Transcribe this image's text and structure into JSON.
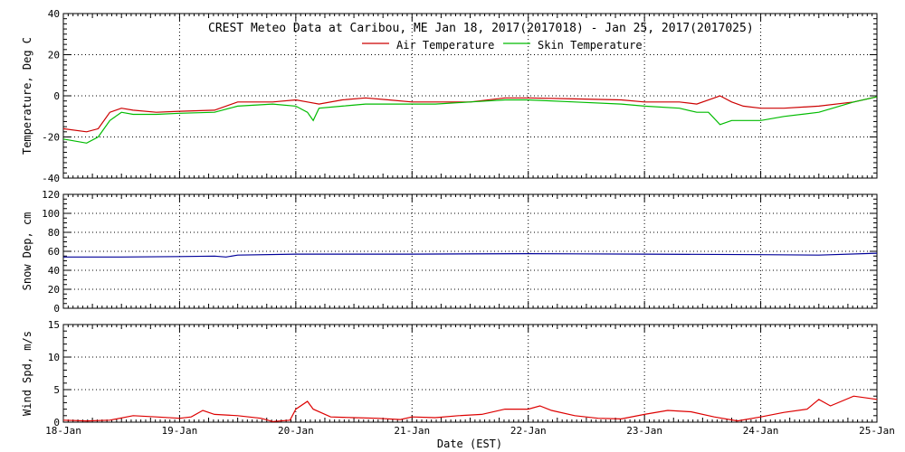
{
  "title": "CREST Meteo Data at Caribou, ME   Jan 18, 2017(2017018) - Jan 25, 2017(2017025)",
  "xlabel": "Date (EST)",
  "x_ticks": [
    "18-Jan",
    "19-Jan",
    "20-Jan",
    "21-Jan",
    "22-Jan",
    "23-Jan",
    "24-Jan",
    "25-Jan"
  ],
  "colors": {
    "air": "#cc0000",
    "skin": "#00bb00",
    "snow": "#000099",
    "wind": "#dd0000",
    "grid": "#000000"
  },
  "chart_data": [
    {
      "type": "line",
      "ylabel": "Temperature, Deg C",
      "xlim": [
        0,
        7
      ],
      "ylim": [
        -40,
        40
      ],
      "y_ticks": [
        "40",
        "20",
        "0",
        "-20",
        "-40"
      ],
      "grid": true,
      "legend": "top-center",
      "series": [
        {
          "name": "Air Temperature",
          "x": [
            0,
            0.2,
            0.3,
            0.4,
            0.5,
            0.6,
            0.8,
            1.0,
            1.3,
            1.5,
            1.8,
            2.0,
            2.1,
            2.2,
            2.4,
            2.6,
            2.8,
            3.0,
            3.2,
            3.5,
            3.8,
            4.0,
            4.4,
            4.8,
            5.0,
            5.3,
            5.45,
            5.6,
            5.65,
            5.75,
            5.85,
            6.0,
            6.2,
            6.5,
            6.8,
            7.0
          ],
          "y": [
            -16,
            -17.5,
            -16,
            -8,
            -6,
            -7,
            -8,
            -7.5,
            -7,
            -3,
            -3,
            -2,
            -3,
            -4,
            -2,
            -1,
            -2,
            -3,
            -3,
            -3,
            -1,
            -1,
            -1.5,
            -2,
            -3,
            -3,
            -4,
            -1,
            0,
            -3,
            -5,
            -6,
            -6,
            -5,
            -3,
            -0.5
          ]
        },
        {
          "name": "Skin Temperature",
          "x": [
            0,
            0.2,
            0.3,
            0.4,
            0.5,
            0.6,
            0.8,
            1.0,
            1.3,
            1.5,
            1.8,
            2.0,
            2.1,
            2.15,
            2.2,
            2.4,
            2.6,
            2.8,
            3.0,
            3.2,
            3.5,
            3.8,
            4.0,
            4.4,
            4.8,
            5.0,
            5.3,
            5.45,
            5.55,
            5.65,
            5.75,
            6.0,
            6.2,
            6.5,
            6.8,
            7.0
          ],
          "y": [
            -21,
            -23,
            -20,
            -12,
            -8,
            -9,
            -9,
            -8.5,
            -8,
            -5,
            -4,
            -5,
            -8,
            -12,
            -6,
            -5,
            -4,
            -4,
            -4,
            -4,
            -3,
            -2,
            -2,
            -3,
            -4,
            -5,
            -6,
            -8,
            -8,
            -14,
            -12,
            -12,
            -10,
            -8,
            -3,
            -0.5
          ]
        }
      ]
    },
    {
      "type": "line",
      "ylabel": "Snow Dep, cm",
      "xlim": [
        0,
        7
      ],
      "ylim": [
        0,
        120
      ],
      "y_ticks": [
        "120",
        "100",
        "80",
        "60",
        "40",
        "20",
        "0"
      ],
      "grid": true,
      "series": [
        {
          "x": [
            0,
            0.5,
            1.0,
            1.3,
            1.4,
            1.5,
            2.0,
            3.0,
            4.0,
            5.0,
            6.0,
            6.5,
            7.0
          ],
          "y": [
            54,
            54,
            54.5,
            55,
            54,
            56,
            57,
            57,
            57.5,
            57,
            56.5,
            56,
            58
          ]
        }
      ]
    },
    {
      "type": "line",
      "ylabel": "Wind Spd, m/s",
      "xlim": [
        0,
        7
      ],
      "ylim": [
        0,
        15
      ],
      "y_ticks": [
        "15",
        "10",
        "5",
        "0"
      ],
      "grid": true,
      "series": [
        {
          "x": [
            0,
            0.2,
            0.4,
            0.6,
            0.8,
            1.0,
            1.1,
            1.2,
            1.3,
            1.5,
            1.7,
            1.8,
            1.95,
            2.0,
            2.1,
            2.15,
            2.3,
            2.5,
            2.7,
            2.9,
            3.0,
            3.2,
            3.4,
            3.6,
            3.8,
            4.0,
            4.1,
            4.2,
            4.4,
            4.6,
            4.8,
            5.0,
            5.2,
            5.4,
            5.6,
            5.8,
            6.0,
            6.2,
            6.4,
            6.5,
            6.6,
            6.8,
            7.0
          ],
          "y": [
            0.3,
            0.2,
            0.3,
            1.0,
            0.8,
            0.6,
            0.8,
            1.8,
            1.2,
            1.0,
            0.6,
            0.1,
            0.3,
            2.0,
            3.2,
            2.0,
            0.8,
            0.7,
            0.6,
            0.4,
            0.8,
            0.7,
            1.0,
            1.2,
            2.0,
            2.0,
            2.5,
            1.8,
            1.0,
            0.6,
            0.5,
            1.2,
            1.8,
            1.6,
            0.8,
            0.2,
            0.8,
            1.5,
            2.0,
            3.5,
            2.5,
            4.0,
            3.5
          ]
        }
      ]
    }
  ]
}
